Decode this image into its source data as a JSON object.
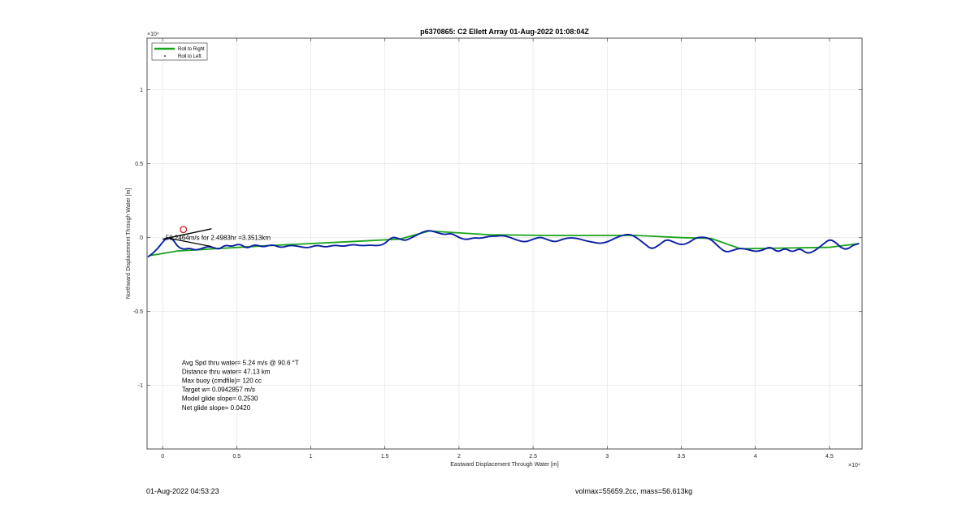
{
  "chart_data": {
    "type": "line",
    "title": "p6370865: C2 Ellett Array 01-Aug-2022 01:08:04Z",
    "xlabel": "Eastward Displacement Through Water [m]",
    "ylabel": "Northward Displacement Through Water [m]",
    "x_exponent_label": "×10⁴",
    "y_exponent_label": "×10⁴",
    "xlim": [
      -0.105,
      4.72
    ],
    "ylim": [
      -1.43,
      1.35
    ],
    "x_scale": 10000,
    "y_scale": 10000,
    "x_ticks": [
      0,
      0.5,
      1,
      1.5,
      2,
      2.5,
      3,
      3.5,
      4,
      4.5
    ],
    "x_tick_labels": [
      "0",
      "0.5",
      "1",
      "1.5",
      "2",
      "2.5",
      "3",
      "3.5",
      "4",
      "4.5"
    ],
    "y_ticks": [
      -1,
      -0.5,
      0,
      0.5,
      1
    ],
    "y_tick_labels": [
      "-1",
      "-0.5",
      "0",
      "0.5",
      "1"
    ],
    "grid": true,
    "legend": {
      "placement": "top-left",
      "entries": [
        {
          "label": "Roll to Right",
          "color": "#1aa31a",
          "style": "line"
        },
        {
          "label": "Roll to Left",
          "color": "#000000",
          "style": "dot"
        }
      ]
    },
    "series": [
      {
        "name": "Roll to Right",
        "color": "#1aa31a",
        "x": [
          -0.08,
          0.1,
          0.35,
          0.7,
          1.0,
          1.3,
          1.6,
          1.8,
          2.2,
          2.6,
          3.0,
          3.2,
          3.5,
          3.7,
          3.9,
          4.2,
          4.5,
          4.7
        ],
        "y": [
          -0.12,
          -0.09,
          -0.075,
          -0.055,
          -0.04,
          -0.025,
          -0.01,
          0.045,
          0.02,
          0.015,
          0.015,
          0.015,
          0.0,
          -0.005,
          -0.075,
          -0.07,
          -0.065,
          -0.04
        ]
      },
      {
        "name": "",
        "color": "#0a1fa3",
        "x": [
          -0.1,
          -0.07,
          -0.03,
          0.0,
          0.03,
          0.07,
          0.1,
          0.14,
          0.18,
          0.22,
          0.26,
          0.3,
          0.34,
          0.38,
          0.42,
          0.47,
          0.52,
          0.57,
          0.62,
          0.68,
          0.74,
          0.8,
          0.86,
          0.92,
          0.98,
          1.04,
          1.1,
          1.16,
          1.22,
          1.28,
          1.34,
          1.4,
          1.46,
          1.5,
          1.53,
          1.56,
          1.6,
          1.64,
          1.68,
          1.72,
          1.76,
          1.8,
          1.85,
          1.9,
          1.95,
          2.0,
          2.05,
          2.1,
          2.15,
          2.2,
          2.25,
          2.3,
          2.35,
          2.4,
          2.45,
          2.5,
          2.55,
          2.6,
          2.65,
          2.7,
          2.75,
          2.8,
          2.85,
          2.9,
          2.95,
          3.0,
          3.05,
          3.1,
          3.15,
          3.2,
          3.25,
          3.3,
          3.35,
          3.4,
          3.45,
          3.5,
          3.55,
          3.6,
          3.65,
          3.7,
          3.75,
          3.8,
          3.85,
          3.9,
          3.95,
          4.0,
          4.05,
          4.1,
          4.15,
          4.2,
          4.25,
          4.3,
          4.35,
          4.4,
          4.45,
          4.5,
          4.54,
          4.58,
          4.62,
          4.66,
          4.7
        ],
        "y": [
          -0.13,
          -0.11,
          -0.07,
          -0.03,
          0.0,
          -0.01,
          -0.06,
          -0.08,
          -0.07,
          -0.085,
          -0.075,
          -0.06,
          -0.065,
          -0.08,
          -0.05,
          -0.06,
          -0.04,
          -0.075,
          -0.045,
          -0.065,
          -0.045,
          -0.07,
          -0.05,
          -0.06,
          -0.07,
          -0.05,
          -0.065,
          -0.05,
          -0.06,
          -0.045,
          -0.055,
          -0.05,
          -0.055,
          -0.04,
          -0.01,
          0.005,
          -0.01,
          -0.02,
          0.0,
          0.02,
          0.04,
          0.05,
          0.035,
          0.02,
          0.03,
          0.0,
          -0.015,
          0.0,
          -0.005,
          0.01,
          0.01,
          0.015,
          0.0,
          -0.02,
          -0.03,
          -0.01,
          0.005,
          -0.015,
          -0.03,
          -0.01,
          0.0,
          -0.005,
          -0.02,
          -0.03,
          -0.04,
          -0.03,
          -0.005,
          0.015,
          0.025,
          0.0,
          -0.04,
          -0.08,
          -0.05,
          -0.01,
          -0.03,
          -0.05,
          -0.035,
          0.0,
          0.005,
          -0.01,
          -0.06,
          -0.1,
          -0.085,
          -0.07,
          -0.08,
          -0.095,
          -0.085,
          -0.06,
          -0.1,
          -0.07,
          -0.1,
          -0.07,
          -0.11,
          -0.09,
          -0.05,
          -0.01,
          -0.03,
          -0.07,
          -0.08,
          -0.05,
          -0.04
        ]
      }
    ],
    "heading_line": {
      "x": [
        0.0,
        0.33
      ],
      "y": [
        -0.01,
        0.06
      ],
      "color": "#000000"
    },
    "marker": {
      "x": 0.14,
      "y": 0.055,
      "color": "#cc1a1a",
      "shape": "circle"
    },
    "annotation": {
      "text": "50.2464m/s for 2.4983hr =3.3513km",
      "x": 0.02,
      "y": 0.0
    },
    "stats_text": [
      "Avg Spd thru water=  5.24 m/s @  90.6 °T",
      "Distance thru water= 47.13 km",
      "Max buoy (cmdfile)= 120 cc",
      "Target w= 0.0942857 m/s",
      "Model glide slope= 0.2530",
      "Net glide slope= 0.0420"
    ],
    "stats_position": {
      "x": 0.13,
      "y": -0.86
    }
  },
  "footer": {
    "left": "01-Aug-2022 04:53:23",
    "right": "volmax=55659.2cc, mass=56.613kg"
  }
}
